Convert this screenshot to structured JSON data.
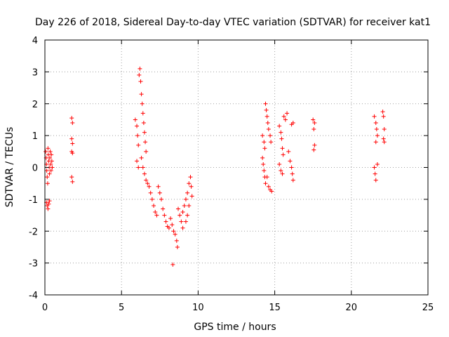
{
  "chart_data": {
    "type": "scatter",
    "title": "Day 226 of 2018, Sidereal Day-to-day VTEC variation (SDTVAR) for receiver kat1",
    "xlabel": "GPS time / hours",
    "ylabel": "SDTVAR / TECUs",
    "xlim": [
      0,
      25
    ],
    "ylim": [
      -4,
      4
    ],
    "xticks": [
      "0",
      "5",
      "10",
      "15",
      "20",
      "25"
    ],
    "yticks": [
      "-4",
      "-3",
      "-2",
      "-1",
      "0",
      "1",
      "2",
      "3",
      "4"
    ],
    "grid": true,
    "marker": "plus",
    "color": "#ff0000",
    "series": [
      {
        "name": "SDTVAR",
        "points": [
          [
            0.05,
            0.5
          ],
          [
            0.08,
            0.3
          ],
          [
            0.1,
            0.1
          ],
          [
            0.12,
            -0.1
          ],
          [
            0.15,
            -0.3
          ],
          [
            0.18,
            -0.5
          ],
          [
            0.2,
            0.6
          ],
          [
            0.22,
            0.4
          ],
          [
            0.25,
            0.2
          ],
          [
            0.28,
            0.0
          ],
          [
            0.3,
            -0.2
          ],
          [
            0.32,
            0.3
          ],
          [
            0.35,
            0.5
          ],
          [
            0.38,
            0.1
          ],
          [
            0.4,
            -0.1
          ],
          [
            0.42,
            0.4
          ],
          [
            0.45,
            0.2
          ],
          [
            0.48,
            0.0
          ],
          [
            0.1,
            -1.1
          ],
          [
            0.15,
            -1.2
          ],
          [
            0.2,
            -1.3
          ],
          [
            0.25,
            -1.15
          ],
          [
            0.3,
            -1.05
          ],
          [
            1.75,
            1.55
          ],
          [
            1.8,
            1.4
          ],
          [
            1.75,
            0.9
          ],
          [
            1.8,
            0.75
          ],
          [
            1.75,
            0.5
          ],
          [
            1.8,
            0.45
          ],
          [
            1.75,
            -0.3
          ],
          [
            1.8,
            -0.45
          ],
          [
            5.9,
            1.5
          ],
          [
            6.0,
            1.3
          ],
          [
            6.05,
            1.0
          ],
          [
            6.1,
            0.7
          ],
          [
            6.0,
            0.2
          ],
          [
            6.1,
            0.0
          ],
          [
            6.15,
            2.9
          ],
          [
            6.2,
            3.1
          ],
          [
            6.25,
            2.7
          ],
          [
            6.3,
            2.3
          ],
          [
            6.35,
            2.0
          ],
          [
            6.4,
            1.7
          ],
          [
            6.45,
            1.4
          ],
          [
            6.5,
            1.1
          ],
          [
            6.55,
            0.8
          ],
          [
            6.6,
            0.5
          ],
          [
            6.3,
            0.3
          ],
          [
            6.4,
            0.0
          ],
          [
            6.5,
            -0.2
          ],
          [
            6.6,
            -0.4
          ],
          [
            6.7,
            -0.5
          ],
          [
            6.8,
            -0.6
          ],
          [
            6.9,
            -0.8
          ],
          [
            7.0,
            -1.0
          ],
          [
            7.1,
            -1.2
          ],
          [
            7.2,
            -1.4
          ],
          [
            7.3,
            -1.5
          ],
          [
            7.4,
            -0.6
          ],
          [
            7.5,
            -0.8
          ],
          [
            7.6,
            -1.0
          ],
          [
            7.7,
            -1.3
          ],
          [
            7.8,
            -1.5
          ],
          [
            7.9,
            -1.7
          ],
          [
            8.0,
            -1.85
          ],
          [
            8.1,
            -1.9
          ],
          [
            8.2,
            -1.6
          ],
          [
            8.3,
            -1.8
          ],
          [
            8.4,
            -2.0
          ],
          [
            8.5,
            -2.1
          ],
          [
            8.6,
            -2.3
          ],
          [
            8.65,
            -2.5
          ],
          [
            8.7,
            -1.3
          ],
          [
            8.8,
            -1.5
          ],
          [
            8.9,
            -1.7
          ],
          [
            9.0,
            -1.4
          ],
          [
            9.1,
            -1.2
          ],
          [
            9.2,
            -1.0
          ],
          [
            9.3,
            -0.8
          ],
          [
            9.4,
            -0.5
          ],
          [
            9.5,
            -0.3
          ],
          [
            9.55,
            -0.6
          ],
          [
            9.6,
            -0.9
          ],
          [
            9.4,
            -1.2
          ],
          [
            9.3,
            -1.5
          ],
          [
            9.2,
            -1.7
          ],
          [
            9.0,
            -1.9
          ],
          [
            8.35,
            -3.05
          ],
          [
            14.2,
            1.0
          ],
          [
            14.3,
            0.8
          ],
          [
            14.35,
            0.6
          ],
          [
            14.4,
            2.0
          ],
          [
            14.45,
            1.8
          ],
          [
            14.5,
            1.6
          ],
          [
            14.55,
            1.4
          ],
          [
            14.6,
            1.2
          ],
          [
            14.7,
            1.0
          ],
          [
            14.75,
            0.8
          ],
          [
            14.2,
            0.3
          ],
          [
            14.25,
            0.1
          ],
          [
            14.3,
            -0.1
          ],
          [
            14.35,
            -0.3
          ],
          [
            14.4,
            -0.5
          ],
          [
            14.5,
            -0.3
          ],
          [
            14.6,
            -0.6
          ],
          [
            14.7,
            -0.7
          ],
          [
            14.8,
            -0.75
          ],
          [
            15.3,
            1.3
          ],
          [
            15.4,
            1.1
          ],
          [
            15.45,
            0.9
          ],
          [
            15.5,
            0.6
          ],
          [
            15.55,
            0.4
          ],
          [
            15.3,
            0.1
          ],
          [
            15.4,
            -0.1
          ],
          [
            15.5,
            -0.2
          ],
          [
            15.6,
            1.6
          ],
          [
            15.7,
            1.5
          ],
          [
            15.8,
            1.7
          ],
          [
            15.9,
            0.5
          ],
          [
            16.0,
            0.2
          ],
          [
            16.1,
            0.0
          ],
          [
            16.15,
            -0.2
          ],
          [
            16.2,
            -0.4
          ],
          [
            16.1,
            1.35
          ],
          [
            16.2,
            1.4
          ],
          [
            17.5,
            1.5
          ],
          [
            17.6,
            1.4
          ],
          [
            17.55,
            1.2
          ],
          [
            17.6,
            0.7
          ],
          [
            17.55,
            0.55
          ],
          [
            21.5,
            1.6
          ],
          [
            21.6,
            1.4
          ],
          [
            21.65,
            1.2
          ],
          [
            21.7,
            1.0
          ],
          [
            21.6,
            0.8
          ],
          [
            21.5,
            0.0
          ],
          [
            21.55,
            -0.2
          ],
          [
            21.6,
            -0.4
          ],
          [
            21.7,
            0.1
          ],
          [
            22.05,
            1.75
          ],
          [
            22.1,
            1.6
          ],
          [
            22.15,
            1.2
          ],
          [
            22.1,
            0.9
          ],
          [
            22.15,
            0.8
          ]
        ]
      }
    ]
  }
}
